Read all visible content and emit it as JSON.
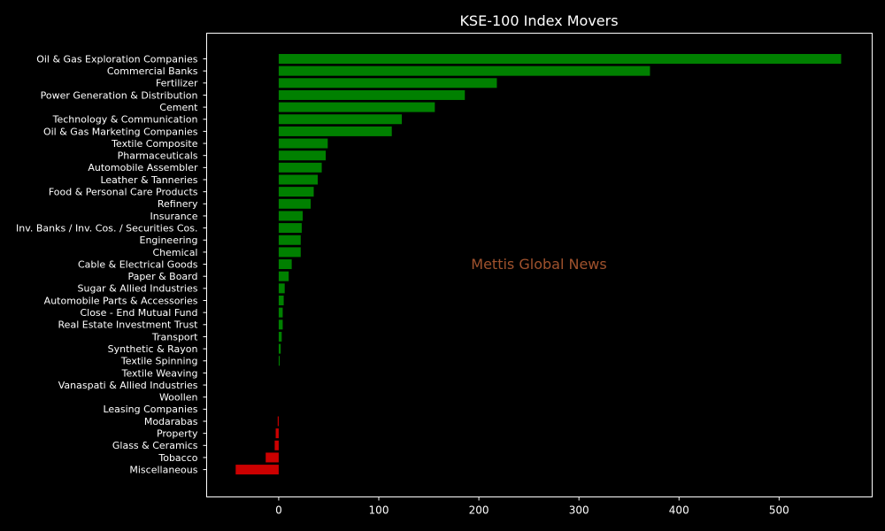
{
  "chart_data": {
    "type": "bar",
    "orientation": "horizontal",
    "title": "KSE-100 Index Movers",
    "watermark": "Mettis Global News",
    "xlabel": "",
    "ylabel": "",
    "xlim": [
      -72,
      593
    ],
    "xticks": [
      0,
      100,
      200,
      300,
      400,
      500
    ],
    "grid": false,
    "colors": {
      "positive": "#008000",
      "negative": "#cc0000",
      "background": "#000000",
      "axes": "#ffffff",
      "text": "#ffffff"
    },
    "categories": [
      "Oil & Gas Exploration Companies",
      "Commercial Banks",
      "Fertilizer",
      "Power Generation & Distribution",
      "Cement",
      "Technology & Communication",
      "Oil & Gas Marketing Companies",
      "Textile Composite",
      "Pharmaceuticals",
      "Automobile Assembler",
      "Leather & Tanneries",
      "Food & Personal Care Products",
      "Refinery",
      "Insurance",
      "Inv. Banks / Inv. Cos. / Securities Cos.",
      "Engineering",
      "Chemical",
      "Cable & Electrical Goods",
      "Paper & Board",
      "Sugar & Allied Industries",
      "Automobile Parts & Accessories",
      "Close - End Mutual Fund",
      "Real Estate Investment Trust",
      "Transport",
      "Synthetic & Rayon",
      "Textile Spinning",
      "Textile Weaving",
      "Vanaspati & Allied Industries",
      "Woollen",
      "Leasing Companies",
      "Modarabas",
      "Property",
      "Glass & Ceramics",
      "Tobacco",
      "Miscellaneous"
    ],
    "values": [
      562,
      371,
      218,
      186,
      156,
      123,
      113,
      49,
      47,
      43,
      39,
      35,
      32,
      24,
      23,
      22,
      22,
      13,
      10,
      6,
      5,
      4,
      4,
      3,
      2,
      1,
      0,
      0,
      0,
      0,
      -1,
      -3,
      -4,
      -13,
      -43
    ]
  }
}
